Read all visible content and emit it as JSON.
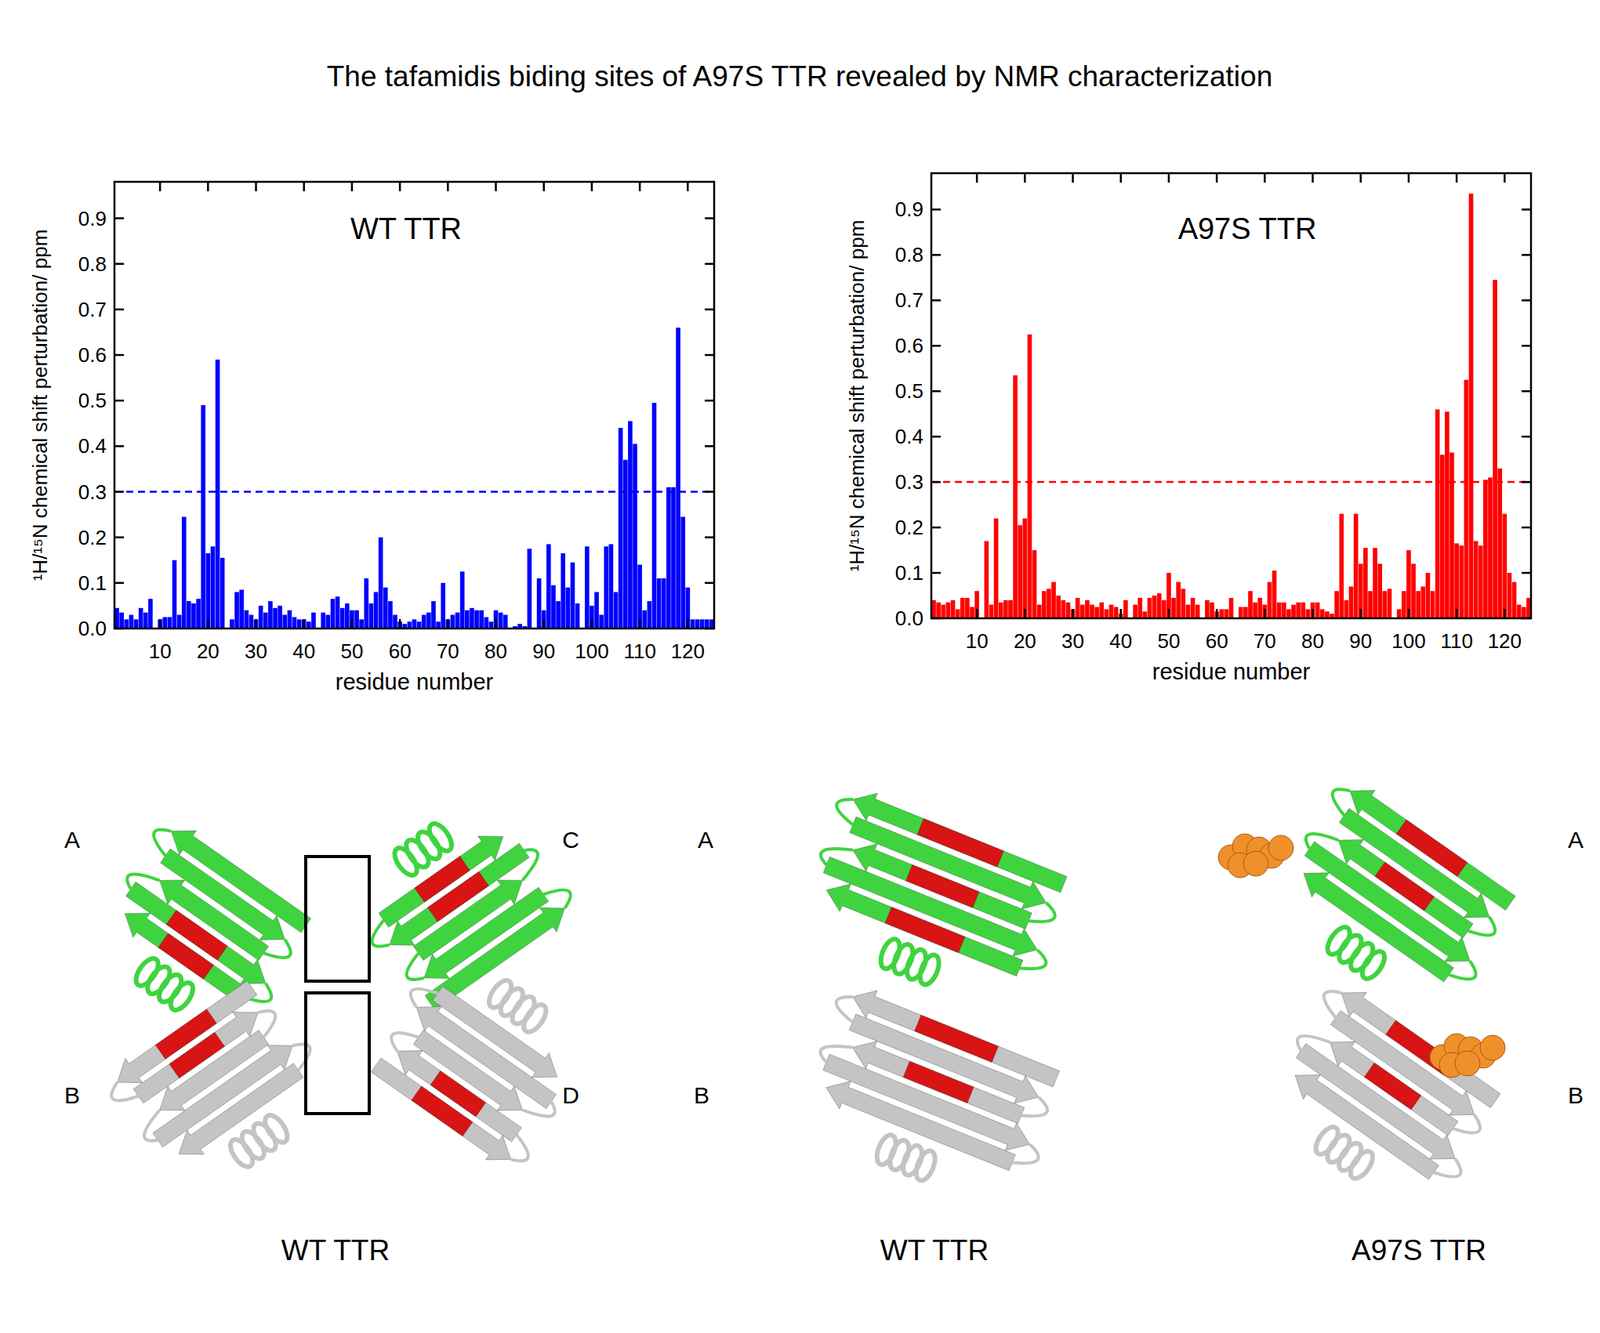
{
  "figure_title": "The tafamidis biding sites of A97S TTR revealed by NMR characterization",
  "chart_data": [
    {
      "type": "bar",
      "title": "WT TTR",
      "x_label": "residue number",
      "y_label": "¹H/¹⁵N chemical shift perturbation/ ppm",
      "color": "#0000ff",
      "threshold": 0.3,
      "xlim": [
        0.5,
        125.5
      ],
      "xticks": [
        10,
        20,
        30,
        40,
        50,
        60,
        70,
        80,
        90,
        100,
        110,
        120
      ],
      "ylim": [
        0,
        0.98
      ],
      "yticks": [
        {
          "value": 0,
          "label": "0.0"
        },
        0.1,
        0.2,
        0.3,
        0.4,
        0.5,
        0.6,
        0.7,
        0.8,
        0.9
      ],
      "x": [
        1,
        2,
        3,
        4,
        5,
        6,
        7,
        8,
        9,
        10,
        11,
        12,
        13,
        14,
        15,
        16,
        17,
        18,
        19,
        20,
        21,
        22,
        23,
        24,
        25,
        26,
        27,
        28,
        29,
        30,
        31,
        32,
        33,
        34,
        35,
        36,
        37,
        38,
        39,
        40,
        41,
        42,
        43,
        44,
        45,
        46,
        47,
        48,
        49,
        50,
        51,
        52,
        53,
        54,
        55,
        56,
        57,
        58,
        59,
        60,
        61,
        62,
        63,
        64,
        65,
        66,
        67,
        68,
        69,
        70,
        71,
        72,
        73,
        74,
        75,
        76,
        77,
        78,
        79,
        80,
        81,
        82,
        83,
        84,
        85,
        86,
        87,
        88,
        89,
        90,
        91,
        92,
        93,
        94,
        95,
        96,
        97,
        98,
        99,
        100,
        101,
        102,
        103,
        104,
        105,
        106,
        107,
        108,
        109,
        110,
        111,
        112,
        113,
        114,
        115,
        116,
        117,
        118,
        119,
        120,
        121,
        122,
        123,
        124,
        125
      ],
      "values": [
        0.045,
        0.035,
        0.02,
        0.03,
        0.02,
        0.045,
        0.035,
        0.065,
        0.0,
        0.02,
        0.025,
        0.025,
        0.15,
        0.03,
        0.245,
        0.06,
        0.055,
        0.065,
        0.49,
        0.165,
        0.18,
        0.59,
        0.155,
        0.0,
        0.02,
        0.08,
        0.085,
        0.04,
        0.03,
        0.02,
        0.05,
        0.035,
        0.06,
        0.045,
        0.05,
        0.03,
        0.04,
        0.025,
        0.02,
        0.02,
        0.015,
        0.035,
        0.0,
        0.035,
        0.03,
        0.065,
        0.07,
        0.045,
        0.055,
        0.04,
        0.04,
        0.02,
        0.11,
        0.055,
        0.08,
        0.2,
        0.09,
        0.06,
        0.03,
        0.015,
        0.01,
        0.015,
        0.02,
        0.015,
        0.03,
        0.035,
        0.06,
        0.015,
        0.1,
        0.02,
        0.03,
        0.035,
        0.125,
        0.04,
        0.045,
        0.04,
        0.04,
        0.025,
        0.015,
        0.04,
        0.035,
        0.03,
        0.0,
        0.005,
        0.01,
        0.005,
        0.175,
        0.0,
        0.11,
        0.04,
        0.185,
        0.095,
        0.06,
        0.165,
        0.09,
        0.145,
        0.055,
        0.0,
        0.18,
        0.05,
        0.08,
        0.03,
        0.18,
        0.185,
        0.08,
        0.44,
        0.37,
        0.455,
        0.405,
        0.14,
        0.04,
        0.06,
        0.495,
        0.11,
        0.11,
        0.31,
        0.31,
        0.66,
        0.245,
        0.09,
        0.02,
        0.02,
        0.02,
        0.02,
        0.02
      ]
    },
    {
      "type": "bar",
      "title": "A97S TTR",
      "x_label": "residue number",
      "y_label": "¹H/¹⁵N chemical shift perturbation/ ppm",
      "color": "#ff0000",
      "threshold": 0.3,
      "xlim": [
        0.5,
        125.5
      ],
      "xticks": [
        10,
        20,
        30,
        40,
        50,
        60,
        70,
        80,
        90,
        100,
        110,
        120
      ],
      "ylim": [
        0,
        0.98
      ],
      "yticks": [
        {
          "value": 0,
          "label": "0.0"
        },
        0.1,
        0.2,
        0.3,
        0.4,
        0.5,
        0.6,
        0.7,
        0.8,
        0.9
      ],
      "x": [
        1,
        2,
        3,
        4,
        5,
        6,
        7,
        8,
        9,
        10,
        11,
        12,
        13,
        14,
        15,
        16,
        17,
        18,
        19,
        20,
        21,
        22,
        23,
        24,
        25,
        26,
        27,
        28,
        29,
        30,
        31,
        32,
        33,
        34,
        35,
        36,
        37,
        38,
        39,
        40,
        41,
        42,
        43,
        44,
        45,
        46,
        47,
        48,
        49,
        50,
        51,
        52,
        53,
        54,
        55,
        56,
        57,
        58,
        59,
        60,
        61,
        62,
        63,
        64,
        65,
        66,
        67,
        68,
        69,
        70,
        71,
        72,
        73,
        74,
        75,
        76,
        77,
        78,
        79,
        80,
        81,
        82,
        83,
        84,
        85,
        86,
        87,
        88,
        89,
        90,
        91,
        92,
        93,
        94,
        95,
        96,
        97,
        98,
        99,
        100,
        101,
        102,
        103,
        104,
        105,
        106,
        107,
        108,
        109,
        110,
        111,
        112,
        113,
        114,
        115,
        116,
        117,
        118,
        119,
        120,
        121,
        122,
        123,
        124,
        125
      ],
      "values": [
        0.04,
        0.035,
        0.03,
        0.035,
        0.04,
        0.02,
        0.045,
        0.045,
        0.025,
        0.06,
        0.0,
        0.17,
        0.03,
        0.22,
        0.035,
        0.04,
        0.04,
        0.535,
        0.205,
        0.22,
        0.625,
        0.15,
        0.03,
        0.06,
        0.065,
        0.08,
        0.05,
        0.04,
        0.035,
        0.02,
        0.045,
        0.03,
        0.04,
        0.03,
        0.025,
        0.035,
        0.02,
        0.03,
        0.025,
        0.01,
        0.04,
        0.0,
        0.03,
        0.045,
        0.015,
        0.045,
        0.05,
        0.055,
        0.04,
        0.1,
        0.045,
        0.08,
        0.065,
        0.03,
        0.045,
        0.03,
        0.0,
        0.04,
        0.035,
        0.015,
        0.02,
        0.02,
        0.045,
        0.0,
        0.025,
        0.025,
        0.06,
        0.035,
        0.045,
        0.03,
        0.08,
        0.105,
        0.035,
        0.035,
        0.02,
        0.03,
        0.035,
        0.035,
        0.02,
        0.035,
        0.035,
        0.02,
        0.015,
        0.01,
        0.06,
        0.23,
        0.04,
        0.07,
        0.23,
        0.12,
        0.155,
        0.06,
        0.155,
        0.12,
        0.06,
        0.065,
        0.0,
        0.02,
        0.06,
        0.15,
        0.12,
        0.06,
        0.07,
        0.1,
        0.06,
        0.46,
        0.36,
        0.455,
        0.365,
        0.165,
        0.16,
        0.525,
        0.935,
        0.17,
        0.16,
        0.305,
        0.31,
        0.745,
        0.33,
        0.23,
        0.1,
        0.08,
        0.03,
        0.025,
        0.045
      ]
    }
  ],
  "structures": [
    {
      "caption": "WT TTR",
      "chains": [
        "A",
        "C",
        "B",
        "D"
      ]
    },
    {
      "caption": "WT TTR",
      "chains": [
        "A",
        "B"
      ]
    },
    {
      "caption": "A97S TTR",
      "chains": [
        "A",
        "B"
      ]
    }
  ]
}
